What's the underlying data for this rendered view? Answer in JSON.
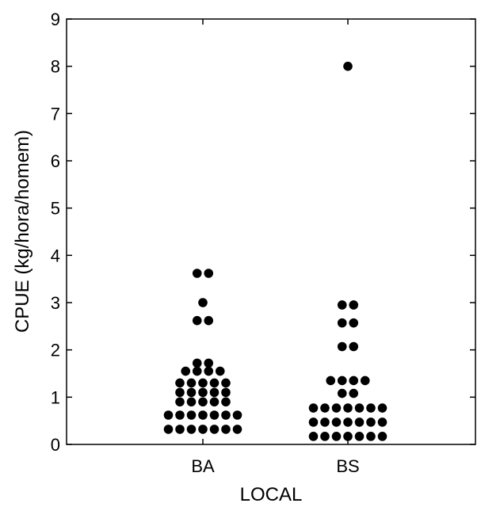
{
  "chart_data": {
    "type": "scatter",
    "title": "",
    "xlabel": "LOCAL",
    "ylabel": "CPUE (kg/hora/homem)",
    "ylim": [
      0,
      9
    ],
    "yticks": [
      "0",
      "1",
      "2",
      "3",
      "4",
      "5",
      "6",
      "7",
      "8",
      "9"
    ],
    "categories": [
      "BA",
      "BS"
    ],
    "grid": false,
    "legend": "none",
    "marker_color": "#000000",
    "groups": [
      {
        "category": "BA",
        "values": [
          0.32,
          0.32,
          0.32,
          0.32,
          0.32,
          0.32,
          0.32,
          0.62,
          0.62,
          0.62,
          0.62,
          0.62,
          0.62,
          0.62,
          0.9,
          0.9,
          0.9,
          0.9,
          0.9,
          1.1,
          1.1,
          1.1,
          1.1,
          1.1,
          1.3,
          1.3,
          1.3,
          1.3,
          1.3,
          1.55,
          1.55,
          1.55,
          1.55,
          1.72,
          1.72,
          2.62,
          2.62,
          3.0,
          3.62,
          3.62
        ]
      },
      {
        "category": "BS",
        "values": [
          0.17,
          0.17,
          0.17,
          0.17,
          0.17,
          0.17,
          0.17,
          0.47,
          0.47,
          0.47,
          0.47,
          0.47,
          0.47,
          0.47,
          0.77,
          0.77,
          0.77,
          0.77,
          0.77,
          0.77,
          0.77,
          1.08,
          1.08,
          1.35,
          1.35,
          1.35,
          1.35,
          2.07,
          2.07,
          2.57,
          2.57,
          2.95,
          2.95,
          8.0
        ]
      }
    ]
  }
}
